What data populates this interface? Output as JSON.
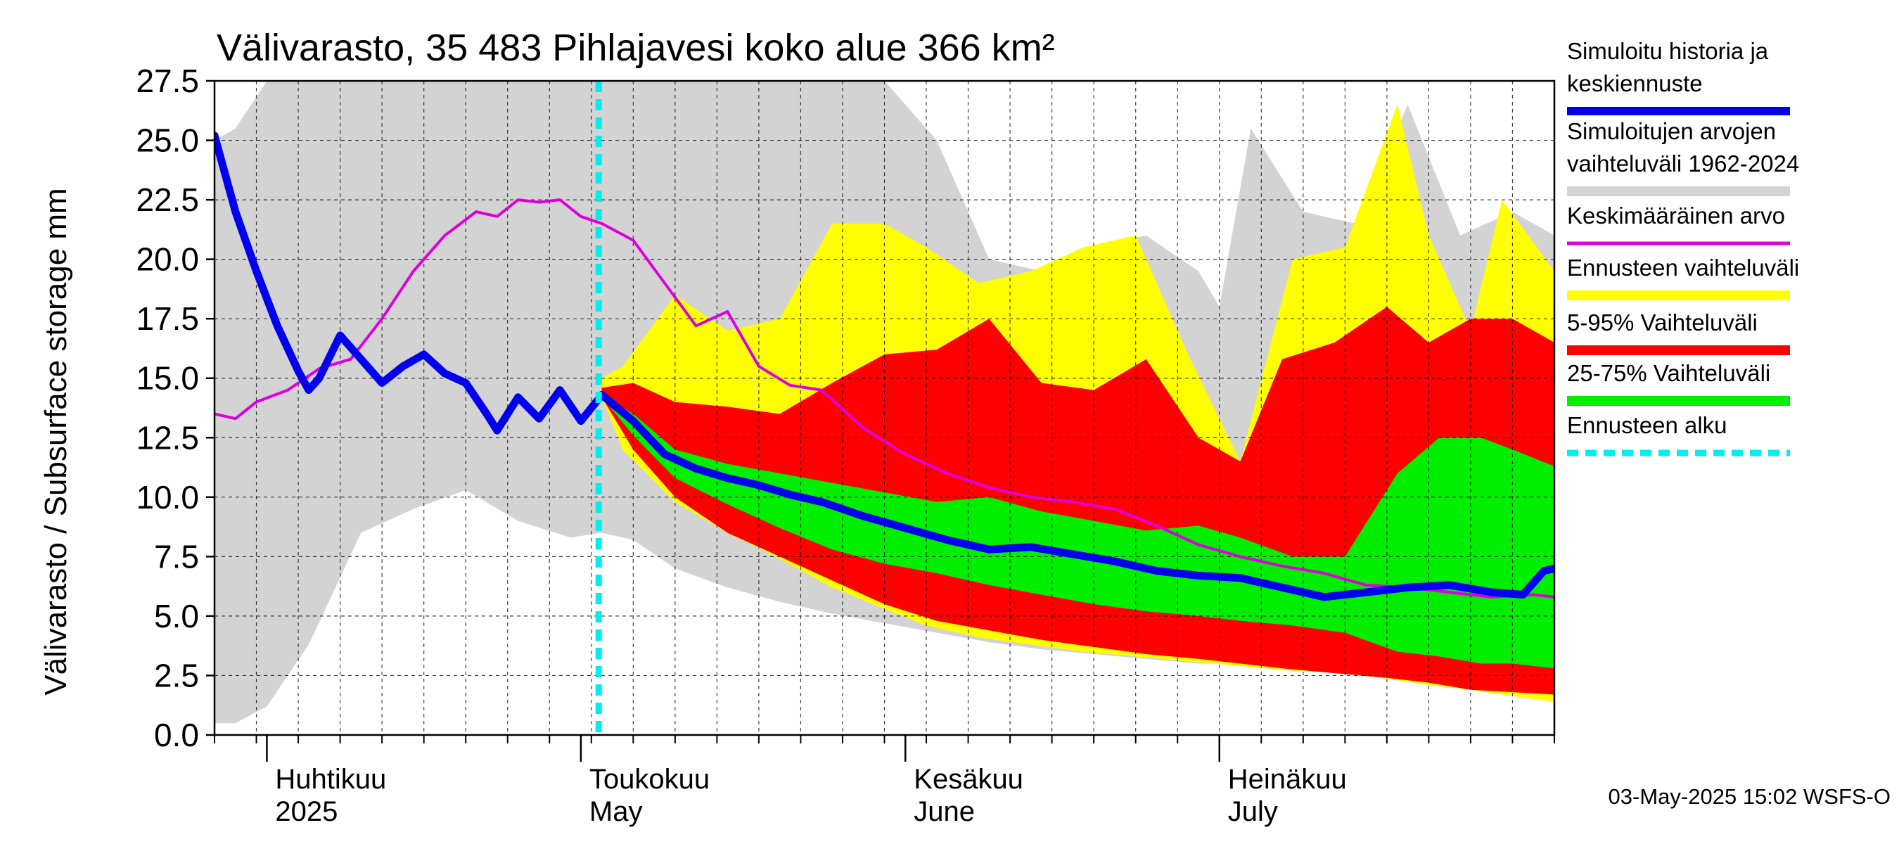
{
  "chart_data": {
    "type": "area",
    "title": "Välivarasto, 35 483 Pihlajavesi koko alue 366 km²",
    "ylabel": "Välivarasto / Subsurface storage  mm",
    "ylim": [
      0,
      27.5
    ],
    "yticks": [
      "0.0",
      "2.5",
      "5.0",
      "7.5",
      "10.0",
      "12.5",
      "15.0",
      "17.5",
      "20.0",
      "22.5",
      "25.0",
      "27.5"
    ],
    "x_start": "2025-03-27",
    "x_end": "2025-08-02",
    "forecast_start": "2025-05-03",
    "grid": true,
    "month_labels": [
      {
        "line1": "Huhtikuu",
        "line2": "2025",
        "date": "2025-04-01"
      },
      {
        "line1": "Toukokuu",
        "line2": "May",
        "date": "2025-05-01"
      },
      {
        "line1": "Kesäkuu",
        "line2": "June",
        "date": "2025-06-01"
      },
      {
        "line1": "Heinäkuu",
        "line2": "July",
        "date": "2025-07-01"
      }
    ],
    "timestamp": "03-May-2025 15:02 WSFS-O",
    "legend": {
      "placement": "right",
      "entries": [
        {
          "label_lines": [
            "Simuloitu historia ja",
            "keskiennuste"
          ],
          "color": "#0000ee"
        },
        {
          "label_lines": [
            "Simuloitujen arvojen",
            "vaihteluväli 1962-2024"
          ],
          "color": "#d3d3d3"
        },
        {
          "label_lines": [
            "Keskimääräinen arvo"
          ],
          "color": "#dd00dd"
        },
        {
          "label_lines": [
            "Ennusteen vaihteluväli"
          ],
          "color": "#ffff00"
        },
        {
          "label_lines": [
            "5-95% Vaihteluväli"
          ],
          "color": "#ff0000"
        },
        {
          "label_lines": [
            "25-75% Vaihteluväli"
          ],
          "color": "#00ee00"
        },
        {
          "label_lines": [
            "Ennusteen alku"
          ],
          "color": "#00eeee"
        }
      ]
    },
    "series": [
      {
        "role": "hist_range",
        "color": "#d3d3d3",
        "x": [
          "2025-03-27",
          "2025-03-29",
          "2025-04-01",
          "2025-04-05",
          "2025-04-10",
          "2025-04-15",
          "2025-04-20",
          "2025-04-25",
          "2025-04-30",
          "2025-05-03",
          "2025-05-06",
          "2025-05-10",
          "2025-05-15",
          "2025-05-20",
          "2025-05-25",
          "2025-05-30",
          "2025-06-04",
          "2025-06-09",
          "2025-06-14",
          "2025-06-19",
          "2025-06-24",
          "2025-06-29",
          "2025-07-01",
          "2025-07-04",
          "2025-07-09",
          "2025-07-14",
          "2025-07-19",
          "2025-07-24",
          "2025-07-29",
          "2025-08-02"
        ],
        "upper": [
          25.0,
          25.5,
          27.5,
          27.5,
          27.5,
          27.5,
          27.5,
          27.5,
          27.5,
          27.5,
          27.5,
          27.5,
          27.5,
          27.5,
          27.5,
          27.5,
          25.0,
          20.0,
          19.5,
          20.5,
          21.0,
          19.5,
          18.0,
          25.5,
          22.0,
          21.5,
          26.5,
          21.0,
          22.0,
          21.0
        ],
        "lower": [
          0.5,
          0.5,
          1.2,
          3.8,
          8.5,
          9.5,
          10.3,
          9.0,
          8.3,
          8.5,
          8.2,
          7.0,
          6.2,
          5.6,
          5.1,
          4.7,
          4.3,
          3.9,
          3.6,
          3.4,
          3.2,
          3.0,
          3.0,
          2.9,
          2.8,
          2.7,
          2.6,
          2.5,
          2.4,
          2.3
        ]
      },
      {
        "role": "forecast_range",
        "color": "#ffff00",
        "x": [
          "2025-05-03",
          "2025-05-05",
          "2025-05-10",
          "2025-05-15",
          "2025-05-20",
          "2025-05-25",
          "2025-05-30",
          "2025-06-03",
          "2025-06-08",
          "2025-06-13",
          "2025-06-18",
          "2025-06-23",
          "2025-06-28",
          "2025-07-03",
          "2025-07-08",
          "2025-07-13",
          "2025-07-18",
          "2025-07-21",
          "2025-07-25",
          "2025-07-28",
          "2025-08-02"
        ],
        "upper": [
          15.0,
          15.5,
          18.5,
          17.0,
          17.5,
          21.5,
          21.5,
          20.5,
          19.0,
          19.5,
          20.5,
          21.0,
          16.0,
          11.5,
          20.0,
          20.5,
          26.5,
          21.0,
          17.0,
          22.5,
          19.5
        ],
        "lower": [
          14.2,
          12.0,
          9.8,
          8.5,
          7.4,
          6.2,
          5.3,
          4.6,
          4.1,
          3.8,
          3.5,
          3.3,
          3.1,
          2.9,
          2.7,
          2.6,
          2.3,
          2.1,
          1.9,
          1.7,
          1.4
        ]
      },
      {
        "role": "p5_95",
        "color": "#ff0000",
        "x": [
          "2025-05-03",
          "2025-05-06",
          "2025-05-10",
          "2025-05-15",
          "2025-05-20",
          "2025-05-25",
          "2025-05-30",
          "2025-06-04",
          "2025-06-09",
          "2025-06-14",
          "2025-06-19",
          "2025-06-24",
          "2025-06-29",
          "2025-07-03",
          "2025-07-07",
          "2025-07-12",
          "2025-07-17",
          "2025-07-21",
          "2025-07-25",
          "2025-07-29",
          "2025-08-02"
        ],
        "upper": [
          14.6,
          14.8,
          14.0,
          13.8,
          13.5,
          14.8,
          16.0,
          16.2,
          17.5,
          14.8,
          14.5,
          15.8,
          12.5,
          11.5,
          15.8,
          16.5,
          18.0,
          16.5,
          17.5,
          17.5,
          16.5
        ],
        "lower": [
          14.2,
          12.0,
          10.0,
          8.5,
          7.5,
          6.5,
          5.5,
          4.8,
          4.4,
          4.0,
          3.7,
          3.4,
          3.2,
          3.0,
          2.8,
          2.6,
          2.4,
          2.2,
          1.9,
          1.8,
          1.7
        ]
      },
      {
        "role": "p25_75",
        "color": "#00ee00",
        "x": [
          "2025-05-03",
          "2025-05-06",
          "2025-05-10",
          "2025-05-15",
          "2025-05-20",
          "2025-05-25",
          "2025-05-30",
          "2025-06-04",
          "2025-06-09",
          "2025-06-14",
          "2025-06-19",
          "2025-06-24",
          "2025-06-29",
          "2025-07-03",
          "2025-07-08",
          "2025-07-13",
          "2025-07-18",
          "2025-07-22",
          "2025-07-26",
          "2025-07-29",
          "2025-08-02"
        ],
        "upper": [
          14.3,
          13.5,
          12.0,
          11.4,
          11.0,
          10.6,
          10.2,
          9.8,
          10.0,
          9.4,
          9.0,
          8.6,
          8.8,
          8.3,
          7.5,
          7.5,
          11.0,
          12.5,
          12.5,
          12.0,
          11.3
        ],
        "lower": [
          14.2,
          12.6,
          10.8,
          9.7,
          8.7,
          7.8,
          7.2,
          6.8,
          6.3,
          5.9,
          5.5,
          5.2,
          5.0,
          4.8,
          4.6,
          4.3,
          3.5,
          3.3,
          3.0,
          3.0,
          2.8
        ]
      },
      {
        "role": "mean",
        "color": "#dd00dd",
        "x": [
          "2025-03-27",
          "2025-03-29",
          "2025-03-31",
          "2025-04-03",
          "2025-04-06",
          "2025-04-09",
          "2025-04-12",
          "2025-04-15",
          "2025-04-18",
          "2025-04-21",
          "2025-04-23",
          "2025-04-25",
          "2025-04-27",
          "2025-04-29",
          "2025-05-01",
          "2025-05-03",
          "2025-05-06",
          "2025-05-09",
          "2025-05-12",
          "2025-05-15",
          "2025-05-18",
          "2025-05-21",
          "2025-05-24",
          "2025-05-28",
          "2025-06-01",
          "2025-06-05",
          "2025-06-09",
          "2025-06-13",
          "2025-06-17",
          "2025-06-21",
          "2025-06-25",
          "2025-06-29",
          "2025-07-03",
          "2025-07-07",
          "2025-07-11",
          "2025-07-15",
          "2025-07-19",
          "2025-07-23",
          "2025-07-27",
          "2025-07-31",
          "2025-08-02"
        ],
        "values": [
          13.5,
          13.3,
          14.0,
          14.5,
          15.4,
          15.8,
          17.5,
          19.5,
          21.0,
          22.0,
          21.8,
          22.5,
          22.4,
          22.5,
          21.8,
          21.5,
          20.8,
          19.0,
          17.2,
          17.8,
          15.5,
          14.7,
          14.5,
          12.9,
          11.8,
          11.0,
          10.4,
          10.0,
          9.8,
          9.5,
          8.8,
          8.0,
          7.5,
          7.1,
          6.8,
          6.3,
          6.2,
          6.0,
          5.8,
          5.9,
          5.8
        ]
      },
      {
        "role": "hist_ensemble_mean",
        "color": "#0000ee",
        "x": [
          "2025-03-27",
          "2025-03-29",
          "2025-03-31",
          "2025-04-02",
          "2025-04-04",
          "2025-04-05",
          "2025-04-06",
          "2025-04-08",
          "2025-04-10",
          "2025-04-12",
          "2025-04-14",
          "2025-04-16",
          "2025-04-18",
          "2025-04-20",
          "2025-04-22",
          "2025-04-23",
          "2025-04-25",
          "2025-04-27",
          "2025-04-29",
          "2025-05-01",
          "2025-05-03",
          "2025-05-06",
          "2025-05-09",
          "2025-05-12",
          "2025-05-15",
          "2025-05-18",
          "2025-05-21",
          "2025-05-24",
          "2025-05-28",
          "2025-06-01",
          "2025-06-05",
          "2025-06-09",
          "2025-06-13",
          "2025-06-17",
          "2025-06-21",
          "2025-06-25",
          "2025-06-29",
          "2025-07-03",
          "2025-07-07",
          "2025-07-11",
          "2025-07-15",
          "2025-07-19",
          "2025-07-23",
          "2025-07-27",
          "2025-07-30",
          "2025-08-01",
          "2025-08-02"
        ],
        "values": [
          25.2,
          22.0,
          19.5,
          17.2,
          15.3,
          14.5,
          15.0,
          16.8,
          15.8,
          14.8,
          15.5,
          16.0,
          15.2,
          14.8,
          13.5,
          12.8,
          14.2,
          13.3,
          14.5,
          13.2,
          14.3,
          13.2,
          11.8,
          11.2,
          10.8,
          10.5,
          10.1,
          9.8,
          9.2,
          8.7,
          8.2,
          7.8,
          7.9,
          7.6,
          7.3,
          6.9,
          6.7,
          6.6,
          6.2,
          5.8,
          6.0,
          6.2,
          6.3,
          6.0,
          5.9,
          6.9,
          7.0
        ]
      }
    ]
  }
}
